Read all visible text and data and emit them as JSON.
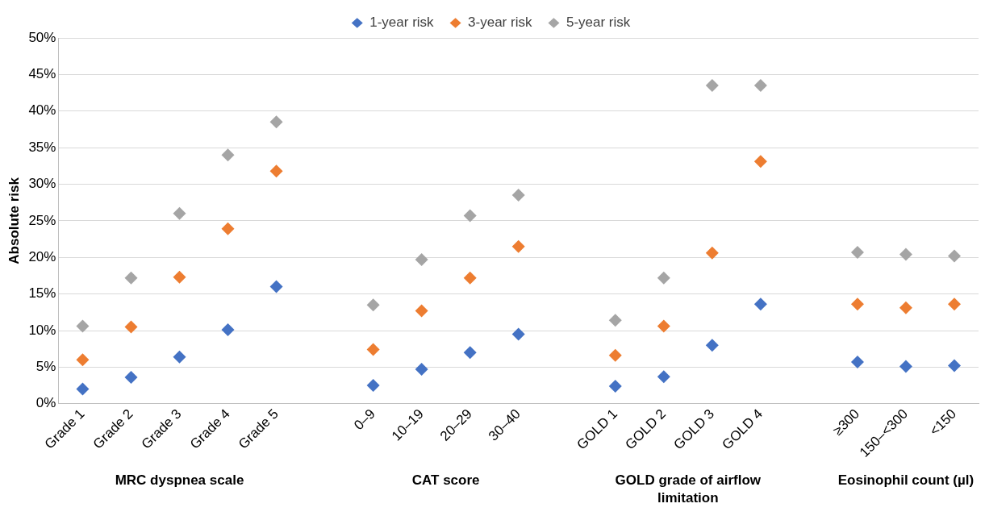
{
  "chart_data": {
    "type": "scatter",
    "ylabel": "Absolute risk",
    "categories": [
      "Grade 1",
      "Grade 2",
      "Grade 3",
      "Grade 4",
      "Grade 5",
      null,
      "0–9",
      "10–19",
      "20–29",
      "30–40",
      null,
      "GOLD 1",
      "GOLD 2",
      "GOLD 3",
      "GOLD 4",
      null,
      "≥300",
      "150–<300",
      "<150"
    ],
    "series": [
      {
        "name": "1-year risk",
        "color": "#4472c4",
        "values": [
          2.0,
          3.6,
          6.4,
          10.1,
          16.0,
          null,
          2.5,
          4.7,
          7.0,
          9.5,
          null,
          2.4,
          3.7,
          8.0,
          13.6,
          null,
          5.7,
          5.1,
          5.2
        ]
      },
      {
        "name": "3-year risk",
        "color": "#ed7d31",
        "values": [
          6.0,
          10.5,
          17.3,
          23.9,
          31.8,
          null,
          7.4,
          12.7,
          17.2,
          21.5,
          null,
          6.6,
          10.6,
          20.6,
          33.1,
          null,
          13.6,
          13.1,
          13.6
        ]
      },
      {
        "name": "5-year risk",
        "color": "#a5a5a5",
        "values": [
          10.6,
          17.2,
          26.0,
          34.0,
          38.5,
          null,
          13.5,
          19.7,
          25.7,
          28.5,
          null,
          11.4,
          17.2,
          43.5,
          43.5,
          null,
          20.7,
          20.4,
          20.2
        ]
      }
    ],
    "ylim": [
      0,
      50
    ],
    "yticks": [
      {
        "value": 0,
        "label": "0%"
      },
      {
        "value": 5,
        "label": "5%"
      },
      {
        "value": 10,
        "label": "10%"
      },
      {
        "value": 15,
        "label": "15%"
      },
      {
        "value": 20,
        "label": "20%"
      },
      {
        "value": 25,
        "label": "25%"
      },
      {
        "value": 30,
        "label": "30%"
      },
      {
        "value": 35,
        "label": "35%"
      },
      {
        "value": 40,
        "label": "40%"
      },
      {
        "value": 45,
        "label": "45%"
      },
      {
        "value": 50,
        "label": "50%"
      }
    ],
    "grid": "y",
    "legend": "top",
    "marker": "diamond",
    "annotations": [
      "MRC dyspnea scale",
      "CAT score",
      "GOLD grade of airflow limitation",
      "Eosinophil count (µl)"
    ]
  }
}
